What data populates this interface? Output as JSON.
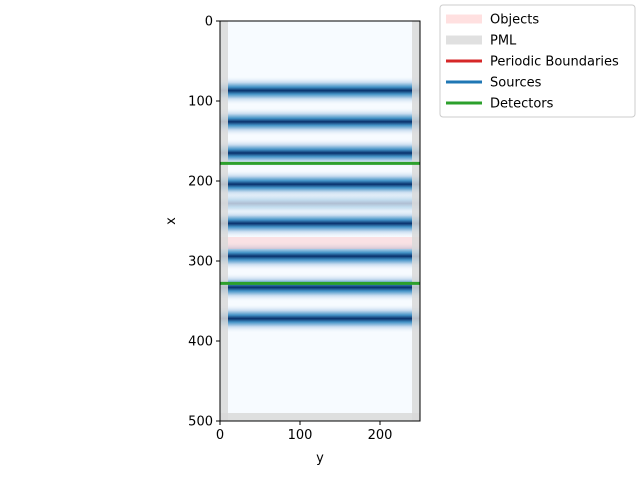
{
  "chart_data": {
    "type": "heatmap",
    "title": "",
    "xlabel": "y",
    "ylabel": "x",
    "xlim": [
      0,
      250
    ],
    "ylim": [
      500,
      0
    ],
    "x_ticks": [
      0,
      100,
      200
    ],
    "y_ticks": [
      0,
      100,
      200,
      300,
      400,
      500
    ],
    "grid": false,
    "legend_position": "outside-top-right",
    "colormap": "Blues",
    "field_bands_x": [
      {
        "x": 87,
        "intensity": 1.0
      },
      {
        "x": 126,
        "intensity": 1.0
      },
      {
        "x": 165,
        "intensity": 1.0
      },
      {
        "x": 204,
        "intensity": 1.0
      },
      {
        "x": 228,
        "intensity": 0.3
      },
      {
        "x": 253,
        "intensity": 1.0
      },
      {
        "x": 294,
        "intensity": 1.0
      },
      {
        "x": 333,
        "intensity": 1.0
      },
      {
        "x": 372,
        "intensity": 1.0
      }
    ],
    "pml": {
      "thickness": 10,
      "color": "#d9d9d9"
    },
    "objects": [
      {
        "x_range": [
          270,
          285
        ],
        "y_range": [
          0,
          250
        ]
      }
    ],
    "detectors": [
      {
        "x": 178
      },
      {
        "x": 328
      }
    ],
    "legend": [
      {
        "label": "Objects",
        "color": "#ffe0e0",
        "style": "thick"
      },
      {
        "label": "PML",
        "color": "#e0e0e0",
        "style": "thick"
      },
      {
        "label": "Periodic Boundaries",
        "color": "#d62728",
        "style": "line"
      },
      {
        "label": "Sources",
        "color": "#1f77b4",
        "style": "line"
      },
      {
        "label": "Detectors",
        "color": "#2ca02c",
        "style": "line"
      }
    ]
  }
}
